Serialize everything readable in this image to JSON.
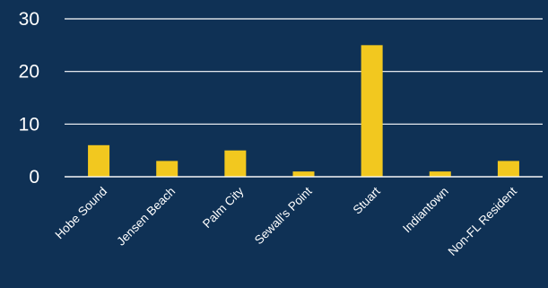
{
  "chart_data": {
    "type": "bar",
    "title": "",
    "xlabel": "",
    "ylabel": "",
    "categories": [
      "Hobe Sound",
      "Jensen Beach",
      "Palm City",
      "Sewall's Point",
      "Stuart",
      "Indiantown",
      "Non-FL Resident"
    ],
    "values": [
      6,
      3,
      5,
      1,
      25,
      1,
      3
    ],
    "ylim": [
      0,
      30
    ],
    "yticks": [
      0,
      10,
      20,
      30
    ],
    "grid": true,
    "legend": "none",
    "bar_color": "#f2c81f",
    "background_color": "#0f3155",
    "text_color": "#ffffff"
  }
}
